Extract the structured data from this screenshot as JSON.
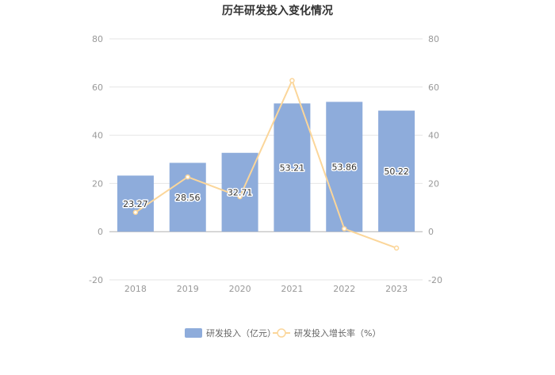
{
  "chart_data": {
    "type": "bar",
    "title": "历年研发投入变化情况",
    "categories": [
      "2018",
      "2019",
      "2020",
      "2021",
      "2022",
      "2023"
    ],
    "series": [
      {
        "name": "研发投入（亿元）",
        "type": "bar",
        "axis": "left",
        "values": [
          23.27,
          28.56,
          32.71,
          53.21,
          53.86,
          50.22
        ],
        "data_labels": [
          "23.27",
          "28.56",
          "32.71",
          "53.21",
          "53.86",
          "50.22"
        ],
        "color": "#8eacdb"
      },
      {
        "name": "研发投入增长率（%）",
        "type": "line",
        "axis": "right",
        "values": [
          8.0,
          22.7,
          14.5,
          62.7,
          1.2,
          -6.8
        ],
        "color": "#fbd69a"
      }
    ],
    "y_left": {
      "ylim": [
        -20,
        80
      ],
      "ticks": [
        "-20",
        "0",
        "20",
        "40",
        "60",
        "80"
      ]
    },
    "y_right": {
      "ylim": [
        -20,
        80
      ],
      "ticks": [
        "-20",
        "0",
        "20",
        "40",
        "60",
        "80"
      ]
    },
    "grid": true,
    "legend": {
      "position": "bottom"
    }
  }
}
